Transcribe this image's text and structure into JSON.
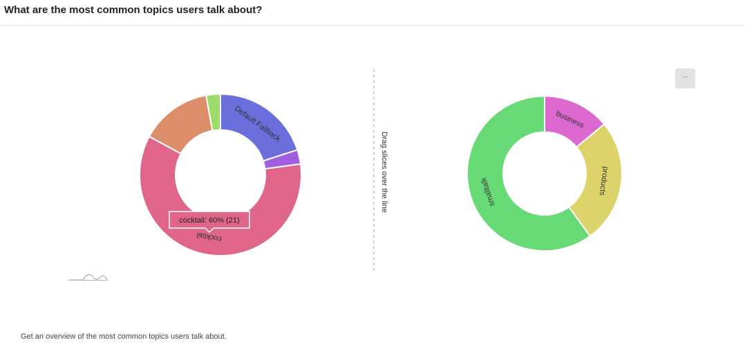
{
  "header": {
    "title": "What are the most common topics users talk about?"
  },
  "chart_data": [
    {
      "type": "pie",
      "donut": true,
      "categories": [
        "Default Fallback",
        null,
        "cocktail",
        null,
        null
      ],
      "values": [
        7,
        1,
        21,
        5,
        1
      ],
      "colors": [
        "#6b6fdc",
        "#a25ee0",
        "#df6688",
        "#dc8d69",
        "#9ddc6a"
      ],
      "tooltip": "cocktail: 60% (21)"
    },
    {
      "type": "pie",
      "donut": true,
      "categories": [
        "business",
        "products",
        "smalltalk"
      ],
      "values": [
        14,
        26,
        60
      ],
      "colors": [
        "#dc69d0",
        "#ddd36b",
        "#67da76"
      ]
    }
  ],
  "divider_label": "Drag slices over the line",
  "menu_button": "...",
  "footer": {
    "text": "Get an overview of the most common topics users talk about."
  }
}
